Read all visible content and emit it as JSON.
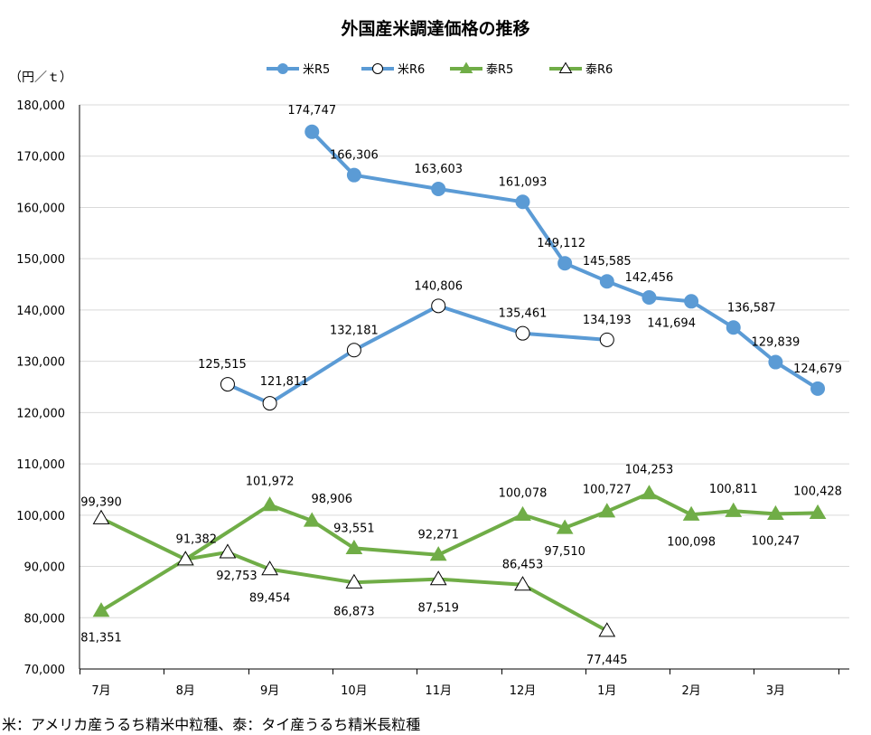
{
  "chart_data": {
    "type": "line",
    "title": "外国産米調達価格の推移",
    "ylabel": "（円／ｔ）",
    "ylim": [
      70000,
      180000
    ],
    "ytick_step": 10000,
    "y_tick_labels": [
      "70,000",
      "80,000",
      "90,000",
      "100,000",
      "110,000",
      "120,000",
      "130,000",
      "140,000",
      "150,000",
      "160,000",
      "170,000",
      "180,000"
    ],
    "categories": [
      "7月",
      "8月",
      "9月",
      "10月",
      "11月",
      "12月",
      "1月",
      "2月",
      "3月"
    ],
    "grid": "horizontal",
    "legend_position": "top",
    "series": [
      {
        "name": "米R5",
        "color": "#5B9BD5",
        "marker": "circle-filled",
        "x": [
          2.5,
          3.0,
          4.0,
          5.0,
          5.5,
          6.0,
          6.5,
          7.0,
          7.5,
          8.0,
          8.5
        ],
        "values": [
          174747,
          166306,
          163603,
          161093,
          149112,
          145585,
          142456,
          141694,
          136587,
          129839,
          124679
        ],
        "labels": [
          "174,747",
          "166,306",
          "163,603",
          "161,093",
          "149,112",
          "145,585",
          "142,456",
          "141,694",
          "136,587",
          "129,839",
          "124,679"
        ]
      },
      {
        "name": "米R6",
        "color": "#5B9BD5",
        "marker": "circle-open",
        "x": [
          1.5,
          2.0,
          3.0,
          4.0,
          5.0,
          6.0
        ],
        "values": [
          125515,
          121811,
          132181,
          140806,
          135461,
          134193
        ],
        "labels": [
          "125,515",
          "121,811",
          "132,181",
          "140,806",
          "135,461",
          "134,193"
        ]
      },
      {
        "name": "泰R5",
        "color": "#70AD47",
        "marker": "triangle-filled",
        "x": [
          0,
          1.0,
          2.0,
          2.5,
          3.0,
          4.0,
          5.0,
          5.5,
          6.0,
          6.5,
          7.0,
          7.5,
          8.0,
          8.5
        ],
        "values": [
          81351,
          91382,
          101972,
          98906,
          93551,
          92271,
          100078,
          97510,
          100727,
          104253,
          100098,
          100811,
          100247,
          100428
        ],
        "labels": [
          "81,351",
          "91,382",
          "101,972",
          "98,906",
          "93,551",
          "92,271",
          "100,078",
          "97,510",
          "100,727",
          "104,253",
          "100,098",
          "100,811",
          "100,247",
          "100,428"
        ]
      },
      {
        "name": "泰R6",
        "color": "#70AD47",
        "marker": "triangle-open",
        "x": [
          0,
          1.0,
          1.5,
          2.0,
          3.0,
          4.0,
          5.0,
          6.0
        ],
        "values": [
          99390,
          91382,
          92753,
          89454,
          86873,
          87519,
          86453,
          77445
        ],
        "labels": [
          "99,390",
          "",
          "92,753",
          "89,454",
          "86,873",
          "87,519",
          "86,453",
          "77,445"
        ]
      }
    ]
  },
  "footnote": "米：アメリカ産うるち精米中粒種、泰：タイ産うるち精米長粒種"
}
